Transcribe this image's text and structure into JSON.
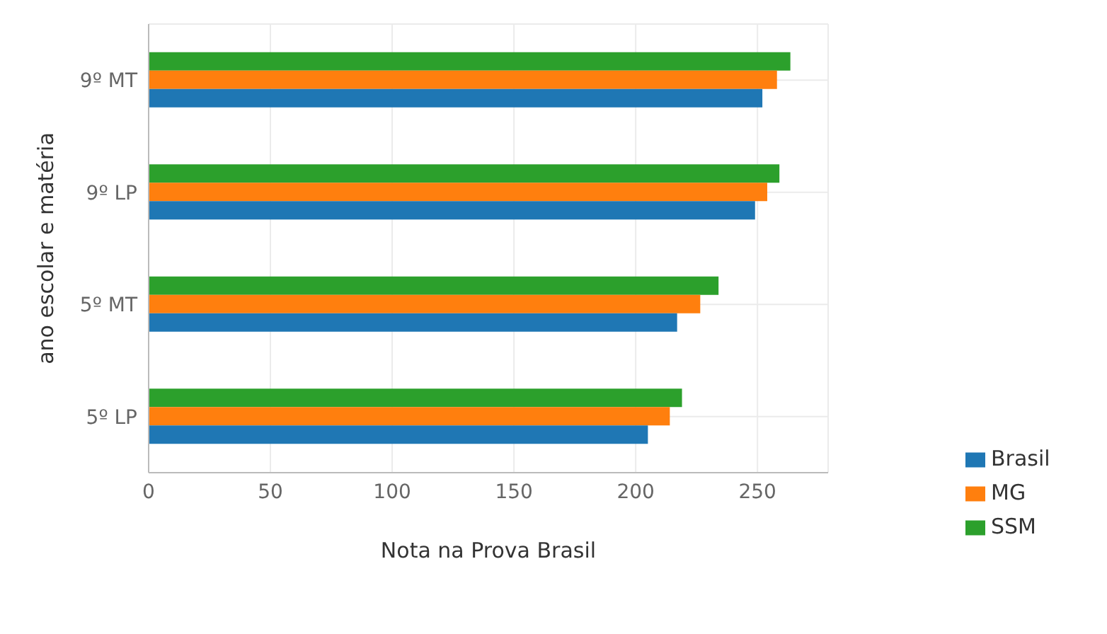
{
  "chart_data": {
    "type": "bar",
    "orientation": "horizontal",
    "xlabel": "Nota na Prova Brasil",
    "ylabel": "ano escolar e matéria",
    "categories": [
      "9º MT",
      "9º LP",
      "5º MT",
      "5º LP"
    ],
    "series": [
      {
        "name": "Brasil",
        "color": "#1f77b4",
        "values": [
          252,
          249,
          217,
          205
        ]
      },
      {
        "name": "MG",
        "color": "#ff7f0e",
        "values": [
          258,
          254,
          226.5,
          214
        ]
      },
      {
        "name": "SSM",
        "color": "#2ca02c",
        "values": [
          263.5,
          259,
          234,
          219
        ]
      }
    ],
    "xlim": [
      0,
      279
    ],
    "xticks": [
      0,
      50,
      100,
      150,
      200,
      250
    ],
    "grid": true,
    "legend": "bottom right"
  }
}
